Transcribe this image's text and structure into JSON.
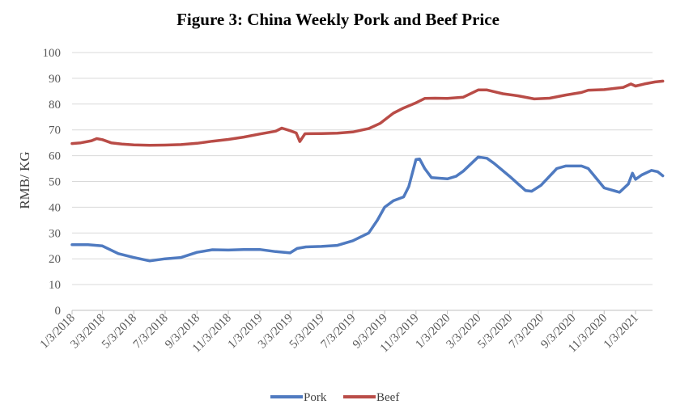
{
  "chart_data": {
    "type": "line",
    "title": "Figure 3: China Weekly Pork and Beef Price",
    "ylabel": "RMB/ KG",
    "xlabel": "",
    "ylim": [
      0,
      100
    ],
    "yticks": [
      "0",
      "10",
      "20",
      "30",
      "40",
      "50",
      "60",
      "70",
      "80",
      "90",
      "100"
    ],
    "xticks": [
      "1/3/2018",
      "3/3/2018",
      "5/3/2018",
      "7/3/2018",
      "9/3/2018",
      "11/3/2018",
      "1/3/2019",
      "3/3/2019",
      "5/3/2019",
      "7/3/2019",
      "9/3/2019",
      "11/3/2019",
      "1/3/2020",
      "3/3/2020",
      "5/3/2020",
      "7/3/2020",
      "9/3/2020",
      "11/3/2020",
      "1/3/2021"
    ],
    "grid": true,
    "legend_position": "bottom",
    "series": [
      {
        "name": "Pork",
        "color": "#4f7ac0",
        "points": [
          [
            "1/3/2018",
            25.5
          ],
          [
            "2/3/2018",
            25.5
          ],
          [
            "3/3/2018",
            25.0
          ],
          [
            "4/3/2018",
            22.0
          ],
          [
            "5/3/2018",
            20.5
          ],
          [
            "6/3/2018",
            19.2
          ],
          [
            "7/3/2018",
            20.0
          ],
          [
            "8/3/2018",
            20.5
          ],
          [
            "9/3/2018",
            22.5
          ],
          [
            "10/3/2018",
            23.5
          ],
          [
            "11/3/2018",
            23.4
          ],
          [
            "12/3/2018",
            23.6
          ],
          [
            "1/3/2019",
            23.6
          ],
          [
            "2/3/2019",
            22.8
          ],
          [
            "3/3/2019",
            22.3
          ],
          [
            "3/17/2019",
            24.0
          ],
          [
            "4/3/2019",
            24.6
          ],
          [
            "5/3/2019",
            24.8
          ],
          [
            "6/3/2019",
            25.2
          ],
          [
            "7/3/2019",
            27.0
          ],
          [
            "8/3/2019",
            30.0
          ],
          [
            "8/20/2019",
            35.0
          ],
          [
            "9/3/2019",
            40.0
          ],
          [
            "9/20/2019",
            42.5
          ],
          [
            "10/10/2019",
            44.0
          ],
          [
            "10/20/2019",
            48.0
          ],
          [
            "11/3/2019",
            58.5
          ],
          [
            "11/10/2019",
            58.7
          ],
          [
            "11/20/2019",
            55.0
          ],
          [
            "12/3/2019",
            51.5
          ],
          [
            "1/3/2020",
            51.0
          ],
          [
            "1/20/2020",
            52.0
          ],
          [
            "2/3/2020",
            54.0
          ],
          [
            "3/3/2020",
            59.5
          ],
          [
            "3/20/2020",
            59.0
          ],
          [
            "4/3/2020",
            57.0
          ],
          [
            "5/3/2020",
            52.0
          ],
          [
            "6/3/2020",
            46.5
          ],
          [
            "6/15/2020",
            46.2
          ],
          [
            "7/3/2020",
            48.5
          ],
          [
            "8/3/2020",
            55.0
          ],
          [
            "8/20/2020",
            56.0
          ],
          [
            "9/3/2020",
            56.0
          ],
          [
            "9/20/2020",
            56.0
          ],
          [
            "10/3/2020",
            55.0
          ],
          [
            "11/3/2020",
            47.5
          ],
          [
            "12/3/2020",
            45.8
          ],
          [
            "12/20/2020",
            49.0
          ],
          [
            "12/28/2020",
            53.2
          ],
          [
            "1/3/2021",
            50.8
          ],
          [
            "1/15/2021",
            52.5
          ],
          [
            "2/3/2021",
            54.3
          ],
          [
            "2/15/2021",
            53.8
          ],
          [
            "2/25/2021",
            52.2
          ]
        ]
      },
      {
        "name": "Beef",
        "color": "#b94c47",
        "points": [
          [
            "1/3/2018",
            64.7
          ],
          [
            "1/20/2018",
            65.0
          ],
          [
            "2/10/2018",
            65.8
          ],
          [
            "2/20/2018",
            66.6
          ],
          [
            "3/3/2018",
            66.2
          ],
          [
            "3/20/2018",
            65.0
          ],
          [
            "4/10/2018",
            64.5
          ],
          [
            "5/3/2018",
            64.2
          ],
          [
            "6/3/2018",
            64.0
          ],
          [
            "7/3/2018",
            64.1
          ],
          [
            "8/3/2018",
            64.3
          ],
          [
            "9/3/2018",
            64.8
          ],
          [
            "10/3/2018",
            65.6
          ],
          [
            "11/3/2018",
            66.3
          ],
          [
            "12/3/2018",
            67.2
          ],
          [
            "1/3/2019",
            68.4
          ],
          [
            "2/3/2019",
            69.5
          ],
          [
            "2/15/2019",
            70.7
          ],
          [
            "3/3/2019",
            69.7
          ],
          [
            "3/15/2019",
            68.8
          ],
          [
            "3/22/2019",
            65.5
          ],
          [
            "4/1/2019",
            68.5
          ],
          [
            "5/3/2019",
            68.6
          ],
          [
            "6/3/2019",
            68.7
          ],
          [
            "7/3/2019",
            69.2
          ],
          [
            "8/3/2019",
            70.5
          ],
          [
            "8/25/2019",
            72.5
          ],
          [
            "9/20/2019",
            76.5
          ],
          [
            "10/10/2019",
            78.5
          ],
          [
            "11/3/2019",
            80.5
          ],
          [
            "11/20/2019",
            82.2
          ],
          [
            "12/10/2019",
            82.3
          ],
          [
            "1/3/2020",
            82.2
          ],
          [
            "2/3/2020",
            82.7
          ],
          [
            "3/3/2020",
            85.5
          ],
          [
            "3/20/2020",
            85.5
          ],
          [
            "4/20/2020",
            84.0
          ],
          [
            "5/20/2020",
            83.2
          ],
          [
            "6/20/2020",
            82.0
          ],
          [
            "7/20/2020",
            82.3
          ],
          [
            "8/20/2020",
            83.5
          ],
          [
            "9/20/2020",
            84.5
          ],
          [
            "10/3/2020",
            85.4
          ],
          [
            "11/3/2020",
            85.6
          ],
          [
            "12/10/2020",
            86.5
          ],
          [
            "12/25/2020",
            87.8
          ],
          [
            "1/3/2021",
            87.0
          ],
          [
            "1/20/2021",
            87.8
          ],
          [
            "2/10/2021",
            88.6
          ],
          [
            "2/25/2021",
            88.9
          ]
        ]
      }
    ]
  }
}
